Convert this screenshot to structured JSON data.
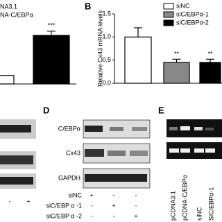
{
  "chart_data": [
    {
      "type": "bar",
      "legend": [
        "NA3.1",
        "NA-C/EBPα"
      ],
      "categories": [
        null,
        null
      ],
      "values": [
        1,
        5.7
      ],
      "colors": [
        "#ffffff",
        "#000000"
      ],
      "ylim": [
        0,
        7
      ],
      "annotations": [
        null,
        "***"
      ]
    },
    {
      "type": "bar",
      "panel": "B",
      "y_label": "Relative Cx43 mRNA levels",
      "categories": [
        "siNC",
        "siC/EBPα-1",
        "siC/EBPα-2"
      ],
      "values": [
        1.0,
        0.45,
        0.45
      ],
      "errors": [
        0.2,
        0.07,
        0.07
      ],
      "colors": [
        "#ffffff",
        "#888888",
        "#000000"
      ],
      "ylim": [
        0,
        1.5
      ],
      "yticks": [
        {
          "value": 0,
          "label": "0.0"
        },
        0.5,
        {
          "value": 1,
          "label": "1.0"
        },
        1.5
      ],
      "annotations": [
        null,
        "**",
        "**"
      ]
    }
  ],
  "blot_left": {
    "rows": [
      "-",
      "+"
    ]
  },
  "blot_d": {
    "panel": "D",
    "bands": [
      "C/EBPα",
      "Cx43",
      "GAPDH"
    ],
    "conditions": [
      {
        "name": "siNC",
        "marks": [
          "+",
          "-",
          "-"
        ]
      },
      {
        "name": "siC/EBP α -1",
        "marks": [
          "-",
          "+",
          "-"
        ]
      },
      {
        "name": "siC/EBP α -2",
        "marks": [
          "-",
          "-",
          "+"
        ]
      }
    ]
  },
  "gel_e": {
    "panel": "E",
    "lanes": [
      "pCDNA3.1",
      "pCDNA-C/EBPα",
      "siNC",
      "SiC/EBPα-1"
    ]
  }
}
